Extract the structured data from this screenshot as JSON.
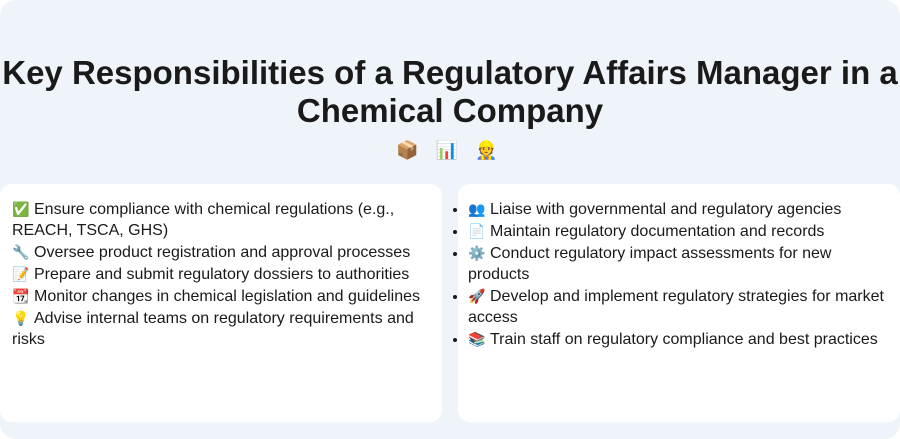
{
  "title": "Key Responsibilities of a Regulatory Affairs Manager in a Chemical Company",
  "title_emojis": "📦 📊 👷",
  "left_items": [
    {
      "icon": "✅",
      "icon_name": "check-mark-icon",
      "text": "Ensure compliance with chemical regulations (e.g., REACH, TSCA, GHS)"
    },
    {
      "icon": "🔧",
      "icon_name": "wrench-icon",
      "text": "Oversee product registration and approval processes"
    },
    {
      "icon": "📝",
      "icon_name": "memo-icon",
      "text": "Prepare and submit regulatory dossiers to authorities"
    },
    {
      "icon": "📆",
      "icon_name": "calendar-icon",
      "text": "Monitor changes in chemical legislation and guidelines"
    },
    {
      "icon": "💡",
      "icon_name": "light-bulb-icon",
      "text": "Advise internal teams on regulatory requirements and risks"
    }
  ],
  "right_items": [
    {
      "icon": "👥",
      "icon_name": "people-icon",
      "text": "Liaise with governmental and regulatory agencies"
    },
    {
      "icon": "📄",
      "icon_name": "document-icon",
      "text": "Maintain regulatory documentation and records"
    },
    {
      "icon": "⚙️",
      "icon_name": "gear-icon",
      "text": "Conduct regulatory impact assessments for new products"
    },
    {
      "icon": "🚀",
      "icon_name": "rocket-icon",
      "text": "Develop and implement regulatory strategies for market access"
    },
    {
      "icon": "📚",
      "icon_name": "books-icon",
      "text": "Train staff on regulatory compliance and best practices"
    }
  ]
}
